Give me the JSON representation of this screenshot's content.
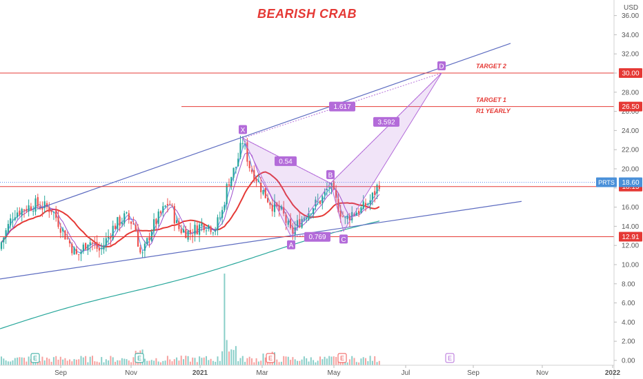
{
  "chart_data": {
    "type": "candlestick",
    "title": "BEARISH CRAB",
    "symbol": "PRTS",
    "currency": "USD",
    "y_range": [
      0,
      37
    ],
    "y_ticks": [
      "0.00",
      "2.00",
      "4.00",
      "6.00",
      "8.00",
      "10.00",
      "12.00",
      "14.00",
      "16.00",
      "18.00",
      "20.00",
      "22.00",
      "24.00",
      "26.00",
      "28.00",
      "30.00",
      "32.00",
      "34.00",
      "36.00"
    ],
    "x_ticks": [
      "Sep",
      "Nov",
      "2021",
      "Mar",
      "May",
      "Jul",
      "Sep",
      "Nov",
      "2022"
    ],
    "last_price": "18.60",
    "price_labels": [
      {
        "value": 30.0,
        "text": "30.00",
        "color": "#e53935"
      },
      {
        "value": 26.5,
        "text": "26.50",
        "color": "#e53935"
      },
      {
        "value": 18.15,
        "text": "18.15",
        "color": "#e53935"
      },
      {
        "value": 12.91,
        "text": "12.91",
        "color": "#e53935"
      }
    ],
    "annotations": [
      "TARGET 2",
      "TARGET 1",
      "R1 YEARLY"
    ],
    "pattern": {
      "name": "Bearish Crab",
      "points": [
        {
          "label": "X",
          "value": 23.2
        },
        {
          "label": "A",
          "value": 12.9
        },
        {
          "label": "B",
          "value": 18.5
        },
        {
          "label": "C",
          "value": 13.5
        },
        {
          "label": "D",
          "value": 30.0
        }
      ],
      "ratios": [
        "0.54",
        "0.769",
        "3.592",
        "1.617"
      ]
    },
    "earnings_markers": [
      "E",
      "E",
      "E",
      "E",
      "E"
    ],
    "colors": {
      "up": "#26a69a",
      "down": "#ef5350",
      "pattern": "#b36bd9",
      "trend": "#5c6bc0",
      "level": "#e53935",
      "ma_red": "#e53935",
      "ma_teal": "#26a69a",
      "ma_purple": "#9c4dcc",
      "ma_blue": "#5b8def"
    }
  }
}
